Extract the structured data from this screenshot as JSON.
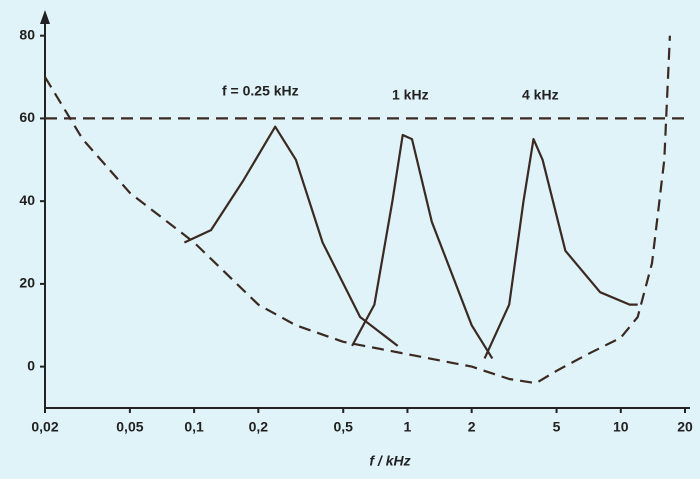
{
  "chart_data": {
    "type": "line",
    "xlabel": "f / kHz",
    "annotations": [
      "f = 0.25 kHz",
      "1 kHz",
      "4 kHz"
    ],
    "xscale": "log",
    "grid": false,
    "xlim": [
      0.02,
      20
    ],
    "ylim": [
      -10,
      85
    ],
    "xticks": [
      {
        "value": 0.02,
        "label": "0,02"
      },
      {
        "value": 0.05,
        "label": "0,05"
      },
      {
        "value": 0.1,
        "label": "0,1"
      },
      {
        "value": 0.2,
        "label": "0,2"
      },
      {
        "value": 0.5,
        "label": "0,5"
      },
      1,
      2,
      5,
      10,
      20
    ],
    "yticks": [
      0,
      20,
      40,
      60,
      80
    ],
    "series": [
      {
        "color": "#3a2a22",
        "dash": true,
        "x": [
          0.02,
          20
        ],
        "values": [
          60,
          60
        ]
      },
      {
        "color": "#3a2a22",
        "dash": true,
        "x": [
          0.02,
          0.03,
          0.05,
          0.1,
          0.2,
          0.3,
          0.5,
          1,
          2,
          3,
          4,
          5,
          7,
          10,
          12,
          14,
          16,
          17
        ],
        "values": [
          70,
          55,
          42,
          30,
          15,
          10,
          6,
          3,
          0,
          -3,
          -4,
          -1,
          3,
          7,
          12,
          25,
          50,
          80
        ]
      },
      {
        "color": "#3a2a22",
        "dash": false,
        "x": [
          0.09,
          0.12,
          0.17,
          0.24,
          0.3,
          0.4,
          0.6,
          0.9
        ],
        "values": [
          30,
          33,
          45,
          58,
          50,
          30,
          12,
          5
        ]
      },
      {
        "color": "#3a2a22",
        "dash": false,
        "x": [
          0.55,
          0.7,
          0.85,
          0.95,
          1.05,
          1.3,
          2,
          2.5
        ],
        "values": [
          5,
          15,
          40,
          56,
          55,
          35,
          10,
          2
        ]
      },
      {
        "color": "#3a2a22",
        "dash": false,
        "x": [
          2.3,
          3,
          3.5,
          3.9,
          4.3,
          5.5,
          8,
          11,
          12
        ],
        "values": [
          2,
          15,
          40,
          55,
          50,
          28,
          18,
          15,
          15
        ]
      }
    ]
  }
}
